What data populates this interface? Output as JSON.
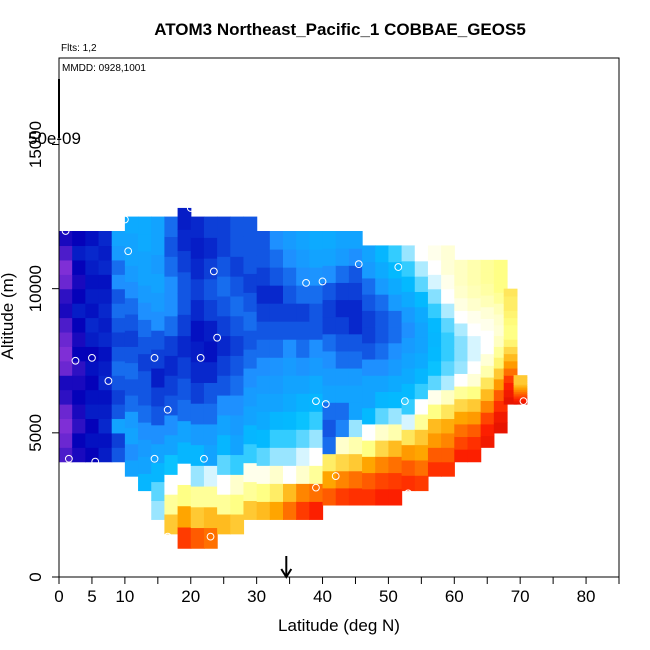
{
  "chart_data": {
    "type": "heatmap",
    "title": "ATOM3 Northeast_Pacific_1 COBBAE_GEOS5",
    "flights_label": "Flts: 1,2",
    "date_label": "MMDD: 0928,1001",
    "color_scale_label": "50e-09",
    "xlabel": "Latitude (deg N)",
    "ylabel": "Altitude (m)",
    "xlim": [
      0,
      85
    ],
    "ylim": [
      0,
      18000
    ],
    "x_ticks": [
      0,
      5,
      10,
      20,
      30,
      40,
      50,
      60,
      70,
      80
    ],
    "x_minor_ticks": [
      15,
      25,
      35,
      45,
      55,
      65,
      75,
      85
    ],
    "y_ticks": [
      0,
      5000,
      10000,
      15000
    ],
    "marker_latitude": 34.5,
    "colormap": [
      "#7f2fd6",
      "#0000b8",
      "#1e90ff",
      "#00bfff",
      "#ffffff",
      "#ffff80",
      "#ffa500",
      "#ff2000",
      "#c00000"
    ],
    "columns": [
      {
        "lat": 1.0,
        "ymin": 4000,
        "ymax": 12000,
        "v": [
          0.05,
          0.02,
          0.0,
          0.02,
          0.08,
          0.1,
          0.02,
          0.0,
          0.02,
          0.05,
          0.1,
          0.08,
          0.02,
          0.0,
          0.05,
          0.1
        ]
      },
      {
        "lat": 3.0,
        "ymin": 4000,
        "ymax": 12000,
        "v": [
          0.1,
          0.12,
          0.08,
          0.1,
          0.12,
          0.1,
          0.08,
          0.12,
          0.1,
          0.12,
          0.15,
          0.12,
          0.1,
          0.12,
          0.15,
          0.12
        ]
      },
      {
        "lat": 5.0,
        "ymin": 4000,
        "ymax": 12000,
        "v": [
          0.12,
          0.14,
          0.12,
          0.15,
          0.14,
          0.12,
          0.14,
          0.12,
          0.15,
          0.16,
          0.14,
          0.15,
          0.14,
          0.15,
          0.16,
          0.14
        ]
      },
      {
        "lat": 7.0,
        "ymin": 4000,
        "ymax": 12000,
        "v": [
          0.15,
          0.14,
          0.16,
          0.15,
          0.14,
          0.16,
          0.15,
          0.14,
          0.16,
          0.15,
          0.16,
          0.15,
          0.14,
          0.16,
          0.15,
          0.16
        ]
      },
      {
        "lat": 9.0,
        "ymin": 4000,
        "ymax": 12000,
        "v": [
          0.2,
          0.18,
          0.3,
          0.2,
          0.18,
          0.2,
          0.22,
          0.2,
          0.18,
          0.2,
          0.22,
          0.2,
          0.25,
          0.22,
          0.28,
          0.3
        ]
      },
      {
        "lat": 11.0,
        "ymin": 3500,
        "ymax": 12500,
        "v": [
          0.3,
          0.25,
          0.3,
          0.28,
          0.22,
          0.2,
          0.22,
          0.2,
          0.18,
          0.2,
          0.22,
          0.25,
          0.28,
          0.3,
          0.3,
          0.32
        ]
      },
      {
        "lat": 13.0,
        "ymin": 3000,
        "ymax": 12500,
        "v": [
          0.35,
          0.3,
          0.28,
          0.25,
          0.22,
          0.2,
          0.2,
          0.18,
          0.2,
          0.22,
          0.25,
          0.28,
          0.3,
          0.3,
          0.32,
          0.32
        ]
      },
      {
        "lat": 15.0,
        "ymin": 2000,
        "ymax": 12500,
        "v": [
          0.45,
          0.42,
          0.35,
          0.3,
          0.25,
          0.2,
          0.18,
          0.15,
          0.18,
          0.2,
          0.25,
          0.28,
          0.3,
          0.28,
          0.3,
          0.3
        ]
      },
      {
        "lat": 17.0,
        "ymin": 1500,
        "ymax": 12500,
        "v": [
          0.7,
          0.6,
          0.5,
          0.38,
          0.3,
          0.25,
          0.2,
          0.18,
          0.16,
          0.18,
          0.22,
          0.25,
          0.25,
          0.22,
          0.2,
          0.22
        ]
      },
      {
        "lat": 19.0,
        "ymin": 1000,
        "ymax": 12800,
        "v": [
          0.85,
          0.75,
          0.62,
          0.5,
          0.35,
          0.3,
          0.22,
          0.2,
          0.18,
          0.16,
          0.18,
          0.2,
          0.2,
          0.18,
          0.16,
          0.15
        ]
      },
      {
        "lat": 21.0,
        "ymin": 1000,
        "ymax": 12500,
        "v": [
          0.82,
          0.7,
          0.6,
          0.45,
          0.35,
          0.28,
          0.22,
          0.18,
          0.16,
          0.15,
          0.14,
          0.16,
          0.18,
          0.16,
          0.15,
          0.16
        ]
      },
      {
        "lat": 23.0,
        "ymin": 1000,
        "ymax": 12500,
        "v": [
          0.8,
          0.72,
          0.6,
          0.48,
          0.3,
          0.28,
          0.22,
          0.2,
          0.16,
          0.14,
          0.15,
          0.18,
          0.2,
          0.18,
          0.16,
          0.18
        ]
      },
      {
        "lat": 25.0,
        "ymin": 1500,
        "ymax": 12500,
        "v": [
          0.72,
          0.6,
          0.5,
          0.42,
          0.35,
          0.3,
          0.25,
          0.2,
          0.18,
          0.16,
          0.18,
          0.2,
          0.22,
          0.2,
          0.18,
          0.18
        ]
      },
      {
        "lat": 27.0,
        "ymin": 1500,
        "ymax": 12500,
        "v": [
          0.7,
          0.62,
          0.55,
          0.4,
          0.3,
          0.28,
          0.25,
          0.22,
          0.2,
          0.18,
          0.2,
          0.22,
          0.2,
          0.18,
          0.2,
          0.2
        ]
      },
      {
        "lat": 29.0,
        "ymin": 2000,
        "ymax": 12500,
        "v": [
          0.7,
          0.6,
          0.52,
          0.4,
          0.35,
          0.3,
          0.28,
          0.25,
          0.22,
          0.2,
          0.22,
          0.2,
          0.18,
          0.2,
          0.2,
          0.2
        ]
      },
      {
        "lat": 31.0,
        "ymin": 2000,
        "ymax": 12000,
        "v": [
          0.72,
          0.62,
          0.52,
          0.42,
          0.36,
          0.32,
          0.3,
          0.28,
          0.25,
          0.22,
          0.2,
          0.18,
          0.16,
          0.18,
          0.2,
          0.2
        ]
      },
      {
        "lat": 33.0,
        "ymin": 2000,
        "ymax": 12000,
        "v": [
          0.75,
          0.65,
          0.55,
          0.45,
          0.4,
          0.35,
          0.3,
          0.28,
          0.26,
          0.22,
          0.2,
          0.18,
          0.16,
          0.2,
          0.22,
          0.25
        ]
      },
      {
        "lat": 35.0,
        "ymin": 2000,
        "ymax": 12000,
        "v": [
          0.8,
          0.72,
          0.5,
          0.45,
          0.4,
          0.36,
          0.32,
          0.3,
          0.28,
          0.25,
          0.2,
          0.18,
          0.2,
          0.22,
          0.25,
          0.28
        ]
      },
      {
        "lat": 37.0,
        "ymin": 2000,
        "ymax": 12000,
        "v": [
          0.85,
          0.78,
          0.55,
          0.48,
          0.42,
          0.38,
          0.34,
          0.3,
          0.26,
          0.22,
          0.2,
          0.18,
          0.22,
          0.25,
          0.28,
          0.3
        ]
      },
      {
        "lat": 39.0,
        "ymin": 2000,
        "ymax": 12000,
        "v": [
          0.88,
          0.8,
          0.6,
          0.5,
          0.45,
          0.4,
          0.35,
          0.32,
          0.28,
          0.25,
          0.2,
          0.2,
          0.22,
          0.26,
          0.3,
          0.32
        ]
      },
      {
        "lat": 41.0,
        "ymin": 2500,
        "ymax": 12000,
        "v": [
          0.82,
          0.75,
          0.65,
          0.22,
          0.2,
          0.22,
          0.3,
          0.28,
          0.25,
          0.22,
          0.18,
          0.18,
          0.2,
          0.25,
          0.3,
          0.32
        ]
      },
      {
        "lat": 43.0,
        "ymin": 2500,
        "ymax": 12000,
        "v": [
          0.85,
          0.78,
          0.68,
          0.55,
          0.24,
          0.22,
          0.3,
          0.28,
          0.22,
          0.2,
          0.18,
          0.16,
          0.18,
          0.22,
          0.28,
          0.3
        ]
      },
      {
        "lat": 45.0,
        "ymin": 2500,
        "ymax": 12000,
        "v": [
          0.86,
          0.8,
          0.7,
          0.58,
          0.45,
          0.3,
          0.3,
          0.28,
          0.22,
          0.2,
          0.16,
          0.16,
          0.18,
          0.2,
          0.25,
          0.3
        ]
      },
      {
        "lat": 47.0,
        "ymin": 2500,
        "ymax": 11500,
        "v": [
          0.86,
          0.82,
          0.75,
          0.62,
          0.5,
          0.36,
          0.3,
          0.3,
          0.25,
          0.2,
          0.18,
          0.18,
          0.2,
          0.22,
          0.28,
          0.3
        ]
      },
      {
        "lat": 49.0,
        "ymin": 2500,
        "ymax": 11500,
        "v": [
          0.88,
          0.84,
          0.78,
          0.68,
          0.55,
          0.42,
          0.35,
          0.3,
          0.25,
          0.22,
          0.2,
          0.2,
          0.22,
          0.28,
          0.32,
          0.35
        ]
      },
      {
        "lat": 51.0,
        "ymin": 2500,
        "ymax": 11500,
        "v": [
          0.88,
          0.85,
          0.8,
          0.72,
          0.58,
          0.45,
          0.36,
          0.32,
          0.28,
          0.25,
          0.22,
          0.22,
          0.28,
          0.32,
          0.36,
          0.4
        ]
      },
      {
        "lat": 53.0,
        "ymin": 3000,
        "ymax": 11500,
        "v": [
          0.86,
          0.82,
          0.76,
          0.66,
          0.48,
          0.4,
          0.36,
          0.32,
          0.3,
          0.28,
          0.25,
          0.28,
          0.32,
          0.36,
          0.4,
          0.45
        ]
      },
      {
        "lat": 55.0,
        "ymin": 3000,
        "ymax": 11500,
        "v": [
          0.85,
          0.8,
          0.75,
          0.7,
          0.6,
          0.5,
          0.4,
          0.35,
          0.32,
          0.3,
          0.3,
          0.32,
          0.36,
          0.42,
          0.46,
          0.5
        ]
      },
      {
        "lat": 57.0,
        "ymin": 3500,
        "ymax": 11500,
        "v": [
          0.86,
          0.82,
          0.76,
          0.72,
          0.62,
          0.52,
          0.42,
          0.38,
          0.36,
          0.35,
          0.36,
          0.4,
          0.44,
          0.48,
          0.5,
          0.52
        ]
      },
      {
        "lat": 59.0,
        "ymin": 3500,
        "ymax": 11500,
        "v": [
          0.86,
          0.82,
          0.78,
          0.74,
          0.66,
          0.56,
          0.46,
          0.42,
          0.4,
          0.4,
          0.42,
          0.46,
          0.5,
          0.52,
          0.54,
          0.54
        ]
      },
      {
        "lat": 61.0,
        "ymin": 4000,
        "ymax": 11000,
        "v": [
          0.88,
          0.84,
          0.8,
          0.75,
          0.68,
          0.6,
          0.5,
          0.45,
          0.44,
          0.44,
          0.46,
          0.5,
          0.53,
          0.55,
          0.56,
          0.56
        ]
      },
      {
        "lat": 63.0,
        "ymin": 4000,
        "ymax": 11000,
        "v": [
          0.88,
          0.86,
          0.82,
          0.76,
          0.7,
          0.62,
          0.54,
          0.5,
          0.48,
          0.48,
          0.5,
          0.52,
          0.55,
          0.57,
          0.58,
          0.58
        ]
      },
      {
        "lat": 65.0,
        "ymin": 4500,
        "ymax": 11000,
        "v": [
          0.9,
          0.88,
          0.84,
          0.78,
          0.72,
          0.66,
          0.58,
          0.54,
          0.5,
          0.5,
          0.52,
          0.54,
          0.57,
          0.59,
          0.6,
          0.6
        ]
      },
      {
        "lat": 67.0,
        "ymin": 5000,
        "ymax": 11000,
        "v": [
          0.92,
          0.9,
          0.86,
          0.82,
          0.76,
          0.7,
          0.64,
          0.6,
          0.56,
          0.54,
          0.55,
          0.57,
          0.6,
          0.62,
          0.62,
          0.62
        ]
      },
      {
        "lat": 68.5,
        "ymin": 6000,
        "ymax": 10000,
        "v": [
          0.92,
          0.9,
          0.88,
          0.85,
          0.8,
          0.76,
          0.72,
          0.68,
          0.64,
          0.62,
          0.62,
          0.63,
          0.64,
          0.65,
          0.65,
          0.66
        ]
      },
      {
        "lat": 70.0,
        "ymin": 6000,
        "ymax": 7000,
        "v": [
          0.92,
          0.9,
          0.88,
          0.86,
          0.84,
          0.82,
          0.8,
          0.78,
          0.76,
          0.74,
          0.72,
          0.7,
          0.7,
          0.7,
          0.7,
          0.7
        ]
      }
    ],
    "observations": [
      {
        "lat": 20,
        "alt": 12800
      },
      {
        "lat": 10,
        "alt": 12400
      },
      {
        "lat": 1,
        "alt": 12000
      },
      {
        "lat": 10.5,
        "alt": 11300
      },
      {
        "lat": 23.5,
        "alt": 10600
      },
      {
        "lat": 45.5,
        "alt": 10850
      },
      {
        "lat": 51.5,
        "alt": 10750
      },
      {
        "lat": 37.5,
        "alt": 10200
      },
      {
        "lat": 40,
        "alt": 10250
      },
      {
        "lat": 24,
        "alt": 8300
      },
      {
        "lat": 5,
        "alt": 7600
      },
      {
        "lat": 14.5,
        "alt": 7600
      },
      {
        "lat": 21.5,
        "alt": 7600
      },
      {
        "lat": 2.5,
        "alt": 7500
      },
      {
        "lat": 7.5,
        "alt": 6800
      },
      {
        "lat": 16.5,
        "alt": 5800
      },
      {
        "lat": 39,
        "alt": 6100
      },
      {
        "lat": 40.5,
        "alt": 6000
      },
      {
        "lat": 52.5,
        "alt": 6100
      },
      {
        "lat": 70.5,
        "alt": 6100
      },
      {
        "lat": 1.5,
        "alt": 4100
      },
      {
        "lat": 5.5,
        "alt": 4000
      },
      {
        "lat": 14.5,
        "alt": 4100
      },
      {
        "lat": 22,
        "alt": 4100
      },
      {
        "lat": 42,
        "alt": 3500
      },
      {
        "lat": 39,
        "alt": 3100
      },
      {
        "lat": 53,
        "alt": 2900
      },
      {
        "lat": 23,
        "alt": 1400
      },
      {
        "lat": 16.5,
        "alt": 1400
      }
    ]
  }
}
